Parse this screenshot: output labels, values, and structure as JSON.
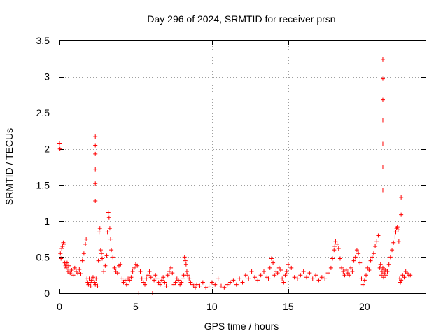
{
  "chart_data": {
    "type": "scatter",
    "title": "Day 296 of 2024, SRMTID for receiver prsn",
    "xlabel": "GPS time / hours",
    "ylabel": "SRMTID / TECUs",
    "xlim": [
      0,
      24
    ],
    "ylim": [
      0,
      3.5
    ],
    "xticks": [
      0,
      5,
      10,
      15,
      20
    ],
    "xtick_labels": [
      "0",
      "5",
      "10",
      "15",
      "20"
    ],
    "yticks": [
      0,
      0.5,
      1,
      1.5,
      2,
      2.5,
      3,
      3.5
    ],
    "ytick_labels": [
      "0",
      "0.5",
      "1",
      "1.5",
      "2",
      "2.5",
      "3",
      "3.5"
    ],
    "grid": true,
    "marker": "+",
    "color": "#ff0000",
    "series": [
      {
        "name": "SRMTID",
        "x": [
          0.0,
          0.03,
          0.06,
          0.1,
          0.15,
          0.2,
          0.25,
          0.3,
          0.35,
          0.4,
          0.45,
          0.5,
          0.55,
          0.6,
          0.7,
          0.8,
          0.9,
          1.0,
          1.1,
          1.2,
          1.3,
          1.4,
          1.5,
          1.6,
          1.7,
          1.75,
          1.8,
          1.85,
          1.9,
          1.95,
          2.0,
          2.05,
          2.1,
          2.2,
          2.3,
          2.35,
          2.4,
          2.5,
          2.55,
          2.6,
          2.65,
          2.7,
          2.75,
          2.8,
          2.9,
          3.0,
          3.1,
          3.15,
          3.2,
          3.25,
          3.3,
          3.35,
          3.4,
          3.5,
          3.6,
          3.7,
          3.8,
          3.9,
          4.0,
          4.1,
          4.2,
          4.3,
          4.4,
          4.5,
          4.6,
          4.7,
          4.8,
          4.9,
          5.0,
          5.1,
          5.2,
          5.3,
          5.4,
          5.5,
          5.6,
          5.7,
          5.8,
          5.9,
          6.0,
          6.1,
          6.2,
          6.3,
          6.4,
          6.5,
          6.6,
          6.7,
          6.8,
          6.9,
          7.0,
          7.1,
          7.2,
          7.3,
          7.4,
          7.5,
          7.6,
          7.7,
          7.8,
          7.9,
          8.0,
          8.1,
          8.15,
          8.2,
          8.25,
          8.3,
          8.35,
          8.4,
          8.5,
          8.6,
          8.7,
          8.8,
          8.9,
          9.0,
          9.2,
          9.4,
          9.6,
          9.8,
          10.0,
          10.2,
          10.4,
          10.6,
          10.8,
          11.0,
          11.2,
          11.4,
          11.6,
          11.8,
          12.0,
          12.2,
          12.4,
          12.6,
          12.8,
          13.0,
          13.2,
          13.4,
          13.6,
          13.7,
          13.8,
          13.9,
          14.0,
          14.1,
          14.2,
          14.3,
          14.4,
          14.5,
          14.6,
          14.7,
          14.8,
          14.9,
          15.0,
          15.2,
          15.4,
          15.6,
          15.8,
          16.0,
          16.2,
          16.4,
          16.6,
          16.8,
          17.0,
          17.2,
          17.4,
          17.6,
          17.8,
          17.9,
          18.0,
          18.05,
          18.1,
          18.2,
          18.3,
          18.4,
          18.5,
          18.6,
          18.7,
          18.8,
          18.9,
          19.0,
          19.1,
          19.2,
          19.3,
          19.4,
          19.5,
          19.6,
          19.7,
          19.8,
          19.9,
          20.0,
          20.1,
          20.2,
          20.3,
          20.4,
          20.5,
          20.6,
          20.7,
          20.8,
          20.9,
          21.0,
          21.05,
          21.1,
          21.15,
          21.2,
          21.25,
          21.3,
          21.35,
          21.4,
          21.5,
          21.6,
          21.7,
          21.8,
          21.9,
          22.0,
          22.05,
          22.1,
          22.15,
          22.2,
          22.25,
          22.3,
          22.35,
          22.4,
          22.5,
          22.6,
          22.7,
          22.8,
          22.9,
          23.0,
          2.35,
          2.35,
          2.35,
          2.35,
          2.35,
          2.35,
          21.2,
          21.2,
          21.2,
          21.2,
          21.2,
          21.2,
          21.2,
          22.4,
          22.4
        ],
        "y": [
          2.08,
          2.0,
          0.55,
          0.48,
          0.62,
          0.65,
          0.7,
          0.68,
          0.42,
          0.38,
          0.35,
          0.42,
          0.3,
          0.38,
          0.28,
          0.32,
          0.25,
          0.35,
          0.3,
          0.28,
          0.33,
          0.27,
          0.45,
          0.55,
          0.68,
          0.75,
          0.2,
          0.15,
          0.12,
          0.2,
          0.15,
          0.1,
          0.18,
          0.22,
          0.15,
          0.12,
          0.2,
          0.1,
          0.45,
          0.85,
          0.9,
          0.6,
          0.55,
          0.48,
          0.3,
          0.38,
          0.52,
          0.85,
          1.12,
          1.05,
          0.9,
          0.75,
          0.6,
          0.5,
          0.35,
          0.3,
          0.28,
          0.38,
          0.4,
          0.2,
          0.15,
          0.18,
          0.12,
          0.2,
          0.18,
          0.22,
          0.3,
          0.35,
          0.4,
          0.38,
          0.0,
          0.3,
          0.2,
          0.15,
          0.12,
          0.2,
          0.25,
          0.3,
          0.22,
          0.0,
          0.18,
          0.25,
          0.2,
          0.15,
          0.12,
          0.18,
          0.22,
          0.15,
          0.1,
          0.25,
          0.3,
          0.35,
          0.28,
          0.12,
          0.15,
          0.2,
          0.18,
          0.12,
          0.15,
          0.2,
          0.25,
          0.5,
          0.45,
          0.4,
          0.3,
          0.25,
          0.2,
          0.15,
          0.12,
          0.1,
          0.08,
          0.12,
          0.1,
          0.15,
          0.08,
          0.1,
          0.15,
          0.12,
          0.2,
          0.1,
          0.08,
          0.12,
          0.15,
          0.18,
          0.12,
          0.2,
          0.15,
          0.25,
          0.2,
          0.3,
          0.22,
          0.18,
          0.25,
          0.3,
          0.22,
          0.2,
          0.35,
          0.48,
          0.42,
          0.25,
          0.3,
          0.28,
          0.35,
          0.32,
          0.2,
          0.15,
          0.25,
          0.3,
          0.4,
          0.35,
          0.22,
          0.2,
          0.25,
          0.3,
          0.22,
          0.28,
          0.2,
          0.25,
          0.18,
          0.22,
          0.2,
          0.28,
          0.35,
          0.48,
          0.6,
          0.65,
          0.72,
          0.68,
          0.62,
          0.48,
          0.35,
          0.3,
          0.25,
          0.32,
          0.28,
          0.25,
          0.35,
          0.3,
          0.45,
          0.5,
          0.6,
          0.55,
          0.42,
          0.2,
          0.12,
          0.18,
          0.25,
          0.35,
          0.32,
          0.45,
          0.5,
          0.55,
          0.65,
          0.72,
          0.8,
          0.35,
          0.4,
          0.25,
          0.3,
          0.35,
          0.22,
          0.28,
          0.32,
          0.25,
          0.3,
          0.4,
          0.5,
          0.6,
          0.7,
          0.78,
          0.85,
          0.9,
          0.92,
          0.88,
          0.72,
          0.2,
          0.15,
          0.18,
          0.25,
          0.22,
          0.3,
          0.28,
          0.25,
          0.25,
          1.28,
          1.52,
          1.72,
          1.93,
          2.05,
          2.17,
          1.43,
          1.75,
          2.07,
          2.4,
          2.68,
          2.97,
          3.24,
          1.09,
          1.33
        ]
      }
    ]
  }
}
